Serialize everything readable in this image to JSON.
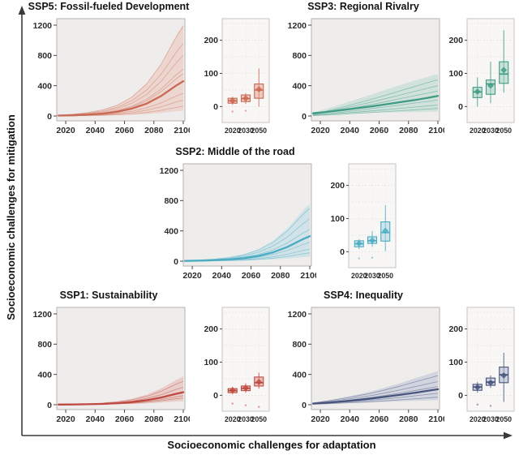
{
  "figure": {
    "y_axis_label": "Socioeconomic challenges for mitigation",
    "x_axis_label": "Socioeconomic challenges for adaptation"
  },
  "chart_data": [
    {
      "id": "ssp5",
      "type": "line+box",
      "title": "SSP5: Fossil-fueled Development",
      "color": {
        "stroke": "#c96a55",
        "band": "#e8a18c",
        "band_opacity": 0.3,
        "member_opacity": 0.45
      },
      "line": {
        "x": [
          2015,
          2025,
          2035,
          2045,
          2055,
          2065,
          2075,
          2085,
          2095,
          2100
        ],
        "xticks": [
          2020,
          2040,
          2060,
          2080,
          2100
        ],
        "yticks": [
          0,
          400,
          800,
          1200
        ],
        "ylim": [
          0,
          1200
        ],
        "main": [
          5,
          9,
          17,
          31,
          55,
          97,
          163,
          265,
          400,
          460
        ],
        "band_upper": [
          12,
          24,
          46,
          82,
          145,
          254,
          430,
          696,
          1053,
          1210
        ],
        "band_lower": [
          4,
          5,
          6,
          8,
          11,
          16,
          25,
          40,
          61,
          70
        ],
        "members": [
          [
            12,
            24,
            45,
            81,
            143,
            250,
            422,
            684,
            1035,
            1190
          ],
          [
            10,
            19,
            36,
            65,
            115,
            202,
            341,
            552,
            835,
            960
          ],
          [
            8,
            16,
            30,
            54,
            96,
            168,
            284,
            460,
            696,
            800
          ],
          [
            6,
            12,
            24,
            42,
            74,
            130,
            220,
            357,
            539,
            620
          ],
          [
            6,
            11,
            21,
            38,
            67,
            118,
            199,
            322,
            487,
            560
          ],
          [
            3,
            6,
            11,
            20,
            36,
            63,
            107,
            173,
            261,
            300
          ],
          [
            2,
            4,
            8,
            14,
            25,
            44,
            75,
            121,
            183,
            210
          ],
          [
            1,
            3,
            5,
            9,
            16,
            27,
            46,
            75,
            113,
            130
          ]
        ]
      },
      "box": {
        "categories": [
          "2020",
          "2030",
          "2050"
        ],
        "yticks": [
          0,
          100,
          200
        ],
        "grid": [
          0,
          50,
          100,
          150,
          200,
          250
        ],
        "ylim": [
          -48,
          265
        ],
        "stats": [
          {
            "lo": 5,
            "q1": 10,
            "med": 17,
            "q3": 25,
            "hi": 30,
            "mean": 18,
            "outliers": [
              -15
            ]
          },
          {
            "lo": 8,
            "q1": 15,
            "med": 24,
            "q3": 35,
            "hi": 40,
            "mean": 25,
            "outliers": [
              -13
            ]
          },
          {
            "lo": 0,
            "q1": 25,
            "med": 50,
            "q3": 68,
            "hi": 115,
            "mean": 52,
            "outliers": []
          }
        ]
      }
    },
    {
      "id": "ssp3",
      "type": "line+box",
      "title": "SSP3: Regional Rivalry",
      "color": {
        "stroke": "#3f9c83",
        "band": "#9fcfc0",
        "band_opacity": 0.38,
        "member_opacity": 0.5
      },
      "line": {
        "x": [
          2015,
          2025,
          2035,
          2045,
          2055,
          2065,
          2075,
          2085,
          2095,
          2100
        ],
        "xticks": [
          2020,
          2040,
          2060,
          2080,
          2100
        ],
        "yticks": [
          0,
          400,
          800,
          1200
        ],
        "ylim": [
          0,
          1200
        ],
        "main": [
          35,
          55,
          78,
          103,
          128,
          155,
          184,
          213,
          246,
          265
        ],
        "band_upper": [
          45,
          100,
          160,
          222,
          285,
          350,
          413,
          472,
          527,
          555
        ],
        "band_lower": [
          25,
          30,
          35,
          39,
          43,
          47,
          50,
          53,
          56,
          58
        ],
        "members": [
          [
            24,
            67,
            115,
            168,
            221,
            278,
            336,
            394,
            451,
            480
          ],
          [
            20,
            56,
            96,
            140,
            184,
            232,
            280,
            328,
            376,
            400
          ],
          [
            17,
            46,
            79,
            116,
            152,
            191,
            231,
            271,
            310,
            330
          ],
          [
            11,
            29,
            50,
            74,
            97,
            122,
            147,
            172,
            197,
            210
          ],
          [
            7,
            20,
            35,
            51,
            67,
            84,
            102,
            119,
            136,
            145
          ],
          [
            5,
            14,
            24,
            35,
            46,
            58,
            70,
            82,
            94,
            100
          ]
        ]
      },
      "box": {
        "categories": [
          "2020",
          "2030",
          "2050"
        ],
        "yticks": [
          0,
          100,
          200
        ],
        "grid": [
          0,
          50,
          100,
          150,
          200,
          250
        ],
        "ylim": [
          -48,
          265
        ],
        "stats": [
          {
            "lo": 0,
            "q1": 27,
            "med": 44,
            "q3": 58,
            "hi": 88,
            "mean": 45,
            "outliers": []
          },
          {
            "lo": 10,
            "q1": 37,
            "med": 68,
            "q3": 80,
            "hi": 135,
            "mean": 63,
            "outliers": []
          },
          {
            "lo": 42,
            "q1": 70,
            "med": 98,
            "q3": 135,
            "hi": 230,
            "mean": 110,
            "outliers": []
          }
        ]
      }
    },
    {
      "id": "ssp2",
      "type": "line+box",
      "title": "SSP2: Middle of the road",
      "color": {
        "stroke": "#4aacc3",
        "band": "#a8d6e2",
        "band_opacity": 0.42,
        "member_opacity": 0.5
      },
      "line": {
        "x": [
          2015,
          2025,
          2035,
          2045,
          2055,
          2065,
          2075,
          2085,
          2095,
          2100
        ],
        "xticks": [
          2020,
          2040,
          2060,
          2080,
          2100
        ],
        "yticks": [
          0,
          400,
          800,
          1200
        ],
        "ylim": [
          0,
          1200
        ],
        "main": [
          3,
          7,
          13,
          22,
          40,
          69,
          117,
          190,
          287,
          330
        ],
        "band_upper": [
          8,
          15,
          29,
          52,
          91,
          160,
          270,
          437,
          661,
          760
        ],
        "band_lower": [
          3,
          4,
          5,
          7,
          10,
          14,
          21,
          35,
          52,
          60
        ],
        "members": [
          [
            7,
            14,
            27,
            48,
            84,
            147,
            249,
            403,
            609,
            700
          ],
          [
            6,
            11,
            21,
            38,
            67,
            118,
            199,
            322,
            487,
            560
          ],
          [
            4,
            8,
            16,
            29,
            50,
            88,
            149,
            242,
            365,
            420
          ],
          [
            3,
            5,
            10,
            17,
            30,
            53,
            89,
            144,
            218,
            250
          ],
          [
            2,
            3,
            6,
            11,
            19,
            34,
            57,
            92,
            139,
            160
          ],
          [
            1,
            2,
            4,
            7,
            13,
            23,
            39,
            63,
            96,
            110
          ]
        ]
      },
      "box": {
        "categories": [
          "2020",
          "2030",
          "2050"
        ],
        "yticks": [
          0,
          100,
          200
        ],
        "grid": [
          0,
          50,
          100,
          150,
          200,
          250
        ],
        "ylim": [
          -48,
          265
        ],
        "stats": [
          {
            "lo": 8,
            "q1": 15,
            "med": 24,
            "q3": 33,
            "hi": 38,
            "mean": 25,
            "outliers": [
              -20
            ]
          },
          {
            "lo": 15,
            "q1": 25,
            "med": 33,
            "q3": 45,
            "hi": 62,
            "mean": 34,
            "outliers": [
              -18
            ]
          },
          {
            "lo": 2,
            "q1": 32,
            "med": 58,
            "q3": 90,
            "hi": 140,
            "mean": 63,
            "outliers": []
          }
        ]
      }
    },
    {
      "id": "ssp1",
      "type": "line+box",
      "title": "SSP1: Sustainability",
      "color": {
        "stroke": "#bf4a41",
        "band": "#dc9289",
        "band_opacity": 0.35,
        "member_opacity": 0.5
      },
      "line": {
        "x": [
          2015,
          2025,
          2035,
          2045,
          2055,
          2065,
          2075,
          2085,
          2095,
          2100
        ],
        "xticks": [
          2020,
          2040,
          2060,
          2080,
          2100
        ],
        "yticks": [
          0,
          400,
          800,
          1200
        ],
        "ylim": [
          0,
          1200
        ],
        "main": [
          2,
          3,
          6,
          11,
          20,
          35,
          59,
          95,
          144,
          165
        ],
        "band_upper": [
          4,
          8,
          14,
          26,
          45,
          79,
          133,
          216,
          326,
          375
        ],
        "band_lower": [
          2,
          3,
          4,
          5,
          7,
          10,
          17,
          28,
          42,
          48
        ],
        "members": [
          [
            3,
            6,
            12,
            21,
            37,
            65,
            110,
            178,
            270,
            310
          ],
          [
            2,
            5,
            9,
            16,
            28,
            48,
            82,
            132,
            200,
            230
          ],
          [
            1,
            2,
            5,
            8,
            14,
            25,
            43,
            69,
            104,
            120
          ],
          [
            1,
            2,
            3,
            6,
            11,
            19,
            32,
            52,
            78,
            90
          ]
        ]
      },
      "box": {
        "categories": [
          "2020",
          "2030",
          "2050"
        ],
        "yticks": [
          0,
          100,
          200
        ],
        "grid": [
          0,
          50,
          100,
          150,
          200,
          250
        ],
        "ylim": [
          -48,
          265
        ],
        "stats": [
          {
            "lo": 3,
            "q1": 8,
            "med": 14,
            "q3": 20,
            "hi": 26,
            "mean": 15,
            "outliers": [
              -25
            ]
          },
          {
            "lo": 8,
            "q1": 14,
            "med": 21,
            "q3": 28,
            "hi": 36,
            "mean": 22,
            "outliers": [
              -30
            ]
          },
          {
            "lo": 20,
            "q1": 28,
            "med": 38,
            "q3": 55,
            "hi": 68,
            "mean": 40,
            "outliers": [
              -35
            ]
          }
        ]
      }
    },
    {
      "id": "ssp4",
      "type": "line+box",
      "title": "SSP4: Inequality",
      "color": {
        "stroke": "#47557d",
        "band": "#aab4cd",
        "band_opacity": 0.42,
        "member_opacity": 0.5
      },
      "line": {
        "x": [
          2015,
          2025,
          2035,
          2045,
          2055,
          2065,
          2075,
          2085,
          2095,
          2100
        ],
        "xticks": [
          2020,
          2040,
          2060,
          2080,
          2100
        ],
        "yticks": [
          0,
          400,
          800,
          1200
        ],
        "ylim": [
          0,
          1200
        ],
        "main": [
          15,
          27,
          43,
          62,
          82,
          107,
          133,
          160,
          190,
          205
        ],
        "band_upper": [
          27,
          58,
          93,
          134,
          178,
          231,
          289,
          352,
          414,
          445
        ],
        "band_lower": [
          10,
          14,
          19,
          25,
          31,
          38,
          45,
          52,
          58,
          62
        ],
        "members": [
          [
            23,
            50,
            81,
            116,
            154,
            200,
            250,
            304,
            358,
            385
          ],
          [
            18,
            40,
            64,
            92,
            122,
            159,
            198,
            241,
            284,
            305
          ],
          [
            14,
            31,
            50,
            72,
            96,
            125,
            156,
            190,
            223,
            240
          ],
          [
            9,
            20,
            32,
            45,
            60,
            78,
            98,
            119,
            140,
            150
          ],
          [
            6,
            13,
            21,
            30,
            40,
            52,
            65,
            79,
            93,
            100
          ]
        ]
      },
      "box": {
        "categories": [
          "2020",
          "2030",
          "2050"
        ],
        "yticks": [
          0,
          100,
          200
        ],
        "grid": [
          0,
          50,
          100,
          150,
          200,
          250
        ],
        "ylim": [
          -48,
          265
        ],
        "stats": [
          {
            "lo": 8,
            "q1": 15,
            "med": 25,
            "q3": 33,
            "hi": 40,
            "mean": 24,
            "outliers": [
              -28
            ]
          },
          {
            "lo": 22,
            "q1": 30,
            "med": 40,
            "q3": 52,
            "hi": 60,
            "mean": 38,
            "outliers": [
              -32
            ]
          },
          {
            "lo": -20,
            "q1": 38,
            "med": 62,
            "q3": 85,
            "hi": 128,
            "mean": 60,
            "outliers": []
          }
        ]
      }
    }
  ]
}
